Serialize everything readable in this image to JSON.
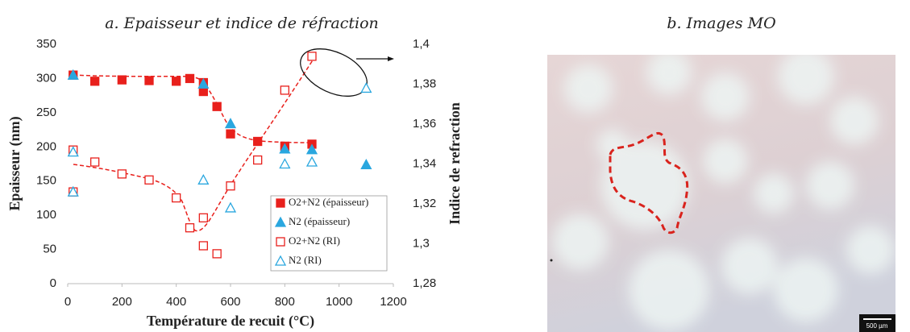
{
  "chart_data": {
    "type": "scatter",
    "title": "a. Epaisseur et indice de réfraction",
    "xlabel": "Température de recuit (°C)",
    "ylabel": "Epaisseur (nm)",
    "y2label": "Indice de refraction",
    "xlim": [
      0,
      1200
    ],
    "xticks": [
      0,
      200,
      400,
      600,
      800,
      1000,
      1200
    ],
    "ylim": [
      0,
      350
    ],
    "yticks": [
      0,
      50,
      100,
      150,
      200,
      250,
      300,
      350
    ],
    "y2lim": [
      1.28,
      1.4
    ],
    "y2ticks": [
      {
        "value": 1.28,
        "label": "1,28"
      },
      {
        "value": 1.3,
        "label": "1,3"
      },
      {
        "value": 1.32,
        "label": "1,32"
      },
      {
        "value": 1.34,
        "label": "1,34"
      },
      {
        "value": 1.36,
        "label": "1,36"
      },
      {
        "value": 1.38,
        "label": "1,38"
      },
      {
        "value": 1.4,
        "label": "1,4"
      }
    ],
    "legend": "lower right",
    "series": [
      {
        "name": "O2+N2 (épaisseur)",
        "color": "#e8201c",
        "marker": "square",
        "filled": true,
        "x": [
          20,
          100,
          200,
          300,
          400,
          450,
          500,
          500,
          550,
          600,
          700,
          800,
          900
        ],
        "values": [
          305,
          296,
          298,
          297,
          296,
          300,
          294,
          281,
          259,
          219,
          208,
          201,
          204
        ]
      },
      {
        "name": "N2 (épaisseur)",
        "color": "#2aa7df",
        "marker": "triangle",
        "filled": true,
        "x": [
          20,
          500,
          600,
          800,
          900,
          1100
        ],
        "values": [
          305,
          292,
          234,
          197,
          196,
          174
        ]
      },
      {
        "name": "O2+N2 (RI)",
        "color": "#e8201c",
        "marker": "square",
        "filled": false,
        "axis": "y2",
        "x": [
          20,
          20,
          100,
          200,
          300,
          400,
          450,
          500,
          500,
          550,
          600,
          700,
          800,
          900
        ],
        "values": [
          1.347,
          1.326,
          1.341,
          1.335,
          1.332,
          1.323,
          1.308,
          1.313,
          1.299,
          1.295,
          1.329,
          1.342,
          1.377,
          1.394
        ]
      },
      {
        "name": "N2 (RI)",
        "color": "#2aa7df",
        "marker": "triangle",
        "filled": false,
        "axis": "y2",
        "x": [
          20,
          20,
          500,
          600,
          800,
          900,
          1100
        ],
        "values": [
          1.346,
          1.326,
          1.332,
          1.318,
          1.34,
          1.341,
          1.378
        ]
      }
    ]
  },
  "image": {
    "title": "b. Images MO",
    "scale_bar": "500 µm"
  }
}
